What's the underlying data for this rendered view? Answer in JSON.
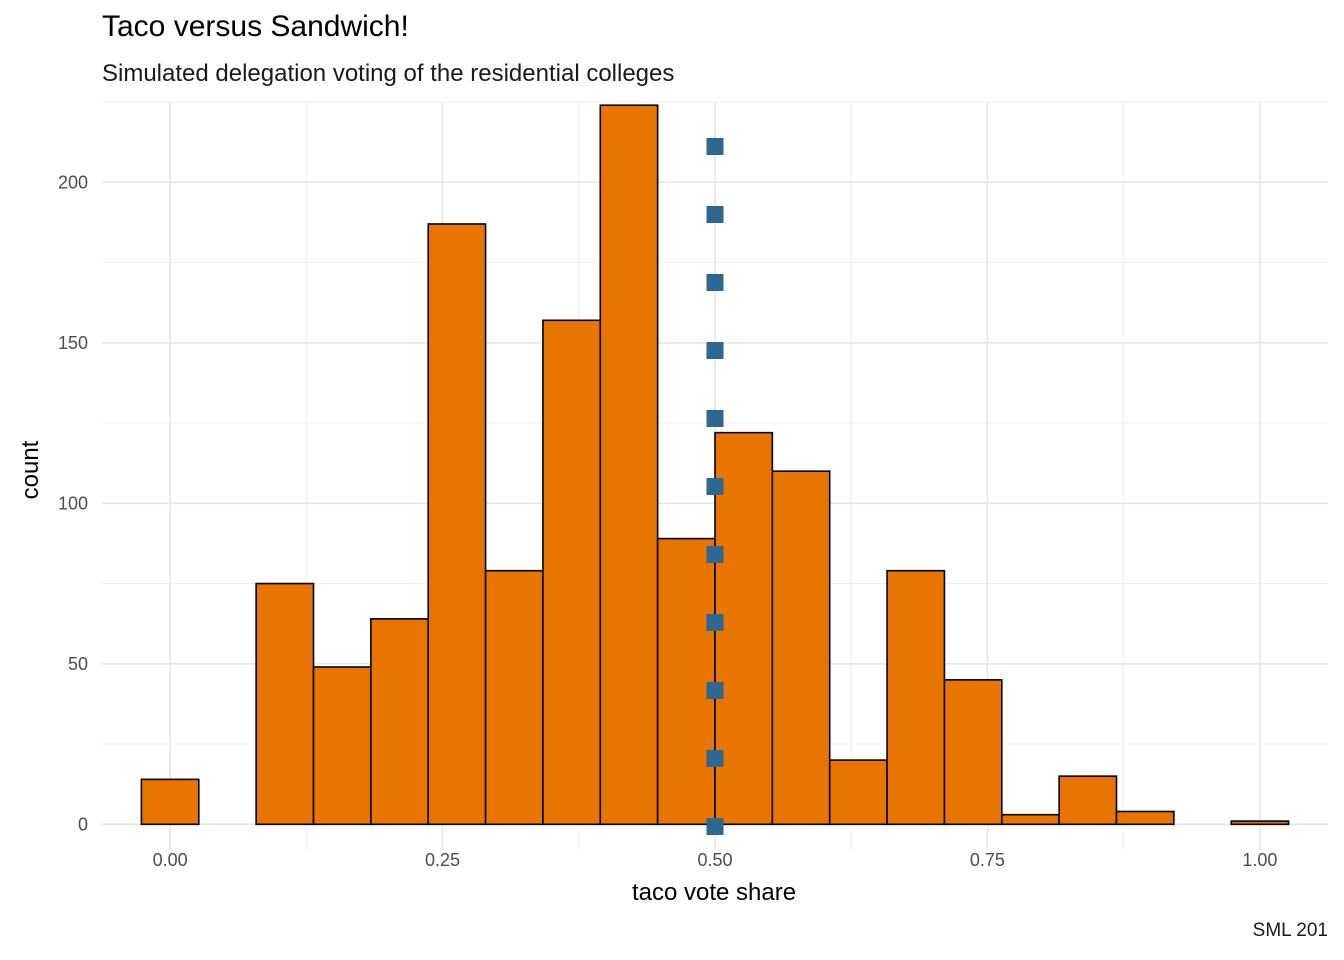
{
  "chart_data": {
    "type": "bar",
    "title": "Taco versus Sandwich!",
    "subtitle": "Simulated delegation voting of the residential colleges",
    "caption": "SML 201",
    "xlabel": "taco vote share",
    "ylabel": "count",
    "xlim": [
      -0.0625,
      1.0625
    ],
    "ylim": [
      -8,
      225
    ],
    "x_ticks": [
      0.0,
      0.25,
      0.5,
      0.75,
      1.0
    ],
    "x_tick_labels": [
      "0.00",
      "0.25",
      "0.50",
      "0.75",
      "1.00"
    ],
    "y_ticks": [
      0,
      50,
      100,
      150,
      200
    ],
    "y_tick_labels": [
      "0",
      "50",
      "100",
      "150",
      "200"
    ],
    "grid": true,
    "bin_width": 0.052632,
    "bin_centers": [
      0.0,
      0.052632,
      0.105263,
      0.157895,
      0.210526,
      0.263158,
      0.315789,
      0.368421,
      0.421053,
      0.473684,
      0.526316,
      0.578947,
      0.631579,
      0.684211,
      0.736842,
      0.789474,
      0.842105,
      0.894737,
      0.947368,
      1.0
    ],
    "counts": [
      14,
      0,
      75,
      49,
      64,
      187,
      79,
      157,
      224,
      89,
      122,
      110,
      20,
      79,
      45,
      3,
      15,
      4,
      0,
      1
    ],
    "bar_color": "#E87500",
    "bar_outline": "#000000",
    "reference_line": {
      "x": 0.5,
      "style": "dotted",
      "color": "#2E6792"
    }
  }
}
